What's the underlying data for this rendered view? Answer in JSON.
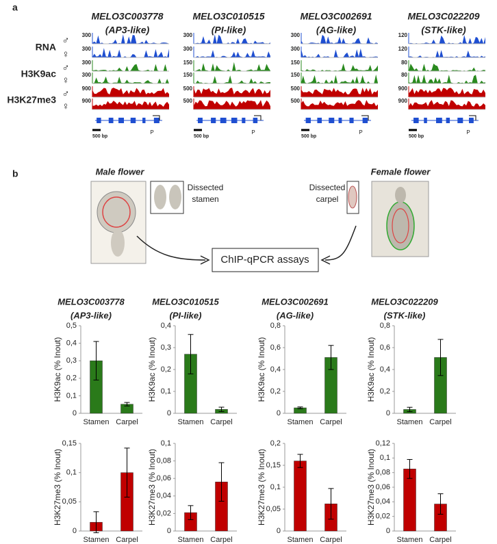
{
  "panel_a": {
    "label": "a",
    "tracks": [
      {
        "name": "RNA",
        "color": "#1f4fd1"
      },
      {
        "name": "H3K9ac",
        "color": "#2a8a1f"
      },
      {
        "name": "H3K27me3",
        "color": "#c00000"
      }
    ],
    "sexes": [
      "♂",
      "♀"
    ],
    "genes": [
      {
        "name": "MELO3C003778",
        "alias": "(AP3-like)",
        "scales": [
          300,
          300,
          300,
          300,
          900,
          900
        ]
      },
      {
        "name": "MELO3C010515",
        "alias": "(PI-like)",
        "scales": [
          300,
          300,
          150,
          150,
          500,
          500
        ]
      },
      {
        "name": "MELO3C002691",
        "alias": "(AG-like)",
        "scales": [
          300,
          300,
          150,
          150,
          500,
          500
        ]
      },
      {
        "name": "MELO3C022209",
        "alias": "(STK-like)",
        "scales": [
          120,
          120,
          80,
          80,
          900,
          900
        ]
      }
    ],
    "scale_bar": "500 bp",
    "promoter": "P"
  },
  "panel_b": {
    "label": "b",
    "male": "Male flower",
    "female": "Female flower",
    "stamen_note": [
      "Dissected",
      "stamen"
    ],
    "carpel_note": [
      "Dissected",
      "carpel"
    ],
    "assay": "ChIP-qPCR assays"
  },
  "chart_data": [
    {
      "type": "bar",
      "title": "MELO3C003778",
      "subtitle": "(AP3-like)",
      "ylabel": "H3K9ac (% Inout)",
      "categories": [
        "Stamen",
        "Carpel"
      ],
      "values": [
        0.3,
        0.052
      ],
      "errors": [
        0.11,
        0.01
      ],
      "color": "#2a7a1a",
      "ylim": [
        0,
        0.5
      ],
      "yticks": [
        0,
        {
          "value": 0.1,
          "label": "0,1"
        },
        {
          "value": 0.2,
          "label": "0,2"
        },
        {
          "value": 0.3,
          "label": "0,3"
        },
        {
          "value": 0.4,
          "label": "0,4"
        },
        {
          "value": 0.5,
          "label": "0,5"
        }
      ]
    },
    {
      "type": "bar",
      "title": "MELO3C010515",
      "subtitle": "(PI-like)",
      "ylabel": "H3K9ac (% Inout)",
      "categories": [
        "Stamen",
        "Carpel"
      ],
      "values": [
        0.27,
        0.018
      ],
      "errors": [
        0.09,
        0.01
      ],
      "color": "#2a7a1a",
      "ylim": [
        0,
        0.4
      ],
      "yticks": [
        0,
        {
          "value": 0.1,
          "label": "0,1"
        },
        {
          "value": 0.2,
          "label": "0,2"
        },
        {
          "value": 0.3,
          "label": "0,3"
        },
        {
          "value": 0.4,
          "label": "0,4"
        }
      ]
    },
    {
      "type": "bar",
      "title": "MELO3C002691",
      "subtitle": "(AG-like)",
      "ylabel": "H3K9ac (% Inout)",
      "categories": [
        "Stamen",
        "Carpel"
      ],
      "values": [
        0.05,
        0.51
      ],
      "errors": [
        0.008,
        0.11
      ],
      "color": "#2a7a1a",
      "ylim": [
        0,
        0.8
      ],
      "yticks": [
        0,
        {
          "value": 0.2,
          "label": "0,2"
        },
        {
          "value": 0.4,
          "label": "0,4"
        },
        {
          "value": 0.6,
          "label": "0,6"
        },
        {
          "value": 0.8,
          "label": "0,8"
        }
      ]
    },
    {
      "type": "bar",
      "title": "MELO3C022209",
      "subtitle": "(STK-like)",
      "ylabel": "H3K9ac (% Inout)",
      "categories": [
        "Stamen",
        "Carpel"
      ],
      "values": [
        0.035,
        0.51
      ],
      "errors": [
        0.02,
        0.165
      ],
      "color": "#2a7a1a",
      "ylim": [
        0,
        0.8
      ],
      "yticks": [
        0,
        {
          "value": 0.2,
          "label": "0,2"
        },
        {
          "value": 0.4,
          "label": "0,4"
        },
        {
          "value": 0.6,
          "label": "0,6"
        },
        {
          "value": 0.8,
          "label": "0,8"
        }
      ]
    },
    {
      "type": "bar",
      "ylabel": "H3K27me3  (% Inout)",
      "categories": [
        "Stamen",
        "Carpel"
      ],
      "values": [
        0.015,
        0.1
      ],
      "errors": [
        0.018,
        0.042
      ],
      "color": "#c00000",
      "ylim": [
        0,
        0.15
      ],
      "yticks": [
        0,
        {
          "value": 0.05,
          "label": "0,05"
        },
        {
          "value": 0.1,
          "label": "0,1"
        },
        {
          "value": 0.15,
          "label": "0,15"
        }
      ]
    },
    {
      "type": "bar",
      "ylabel": "H3K27me3  (% Inout)",
      "categories": [
        "Stamen",
        "Carpel"
      ],
      "values": [
        0.021,
        0.056
      ],
      "errors": [
        0.008,
        0.022
      ],
      "color": "#c00000",
      "ylim": [
        0,
        0.1
      ],
      "yticks": [
        0,
        {
          "value": 0.02,
          "label": "0,02"
        },
        {
          "value": 0.04,
          "label": "0,04"
        },
        {
          "value": 0.06,
          "label": "0,06"
        },
        {
          "value": 0.08,
          "label": "0,08"
        },
        {
          "value": 0.1,
          "label": "0,1"
        }
      ]
    },
    {
      "type": "bar",
      "ylabel": "H3K27me3  (% Inout)",
      "categories": [
        "Stamen",
        "Carpel"
      ],
      "values": [
        0.16,
        0.062
      ],
      "errors": [
        0.015,
        0.035
      ],
      "color": "#c00000",
      "ylim": [
        0,
        0.2
      ],
      "yticks": [
        0,
        {
          "value": 0.05,
          "label": "0,05"
        },
        {
          "value": 0.1,
          "label": "0,1"
        },
        {
          "value": 0.15,
          "label": "0,15"
        },
        {
          "value": 0.2,
          "label": "0,2"
        }
      ]
    },
    {
      "type": "bar",
      "ylabel": "H3K27me3  (% Inout)",
      "categories": [
        "Stamen",
        "Carpel"
      ],
      "values": [
        0.085,
        0.037
      ],
      "errors": [
        0.013,
        0.014
      ],
      "color": "#c00000",
      "ylim": [
        0,
        0.12
      ],
      "yticks": [
        0,
        {
          "value": 0.02,
          "label": "0,02"
        },
        {
          "value": 0.04,
          "label": "0,04"
        },
        {
          "value": 0.06,
          "label": "0,06"
        },
        {
          "value": 0.08,
          "label": "0,08"
        },
        {
          "value": 0.1,
          "label": "0,1"
        },
        {
          "value": 0.12,
          "label": "0,12"
        }
      ]
    }
  ]
}
